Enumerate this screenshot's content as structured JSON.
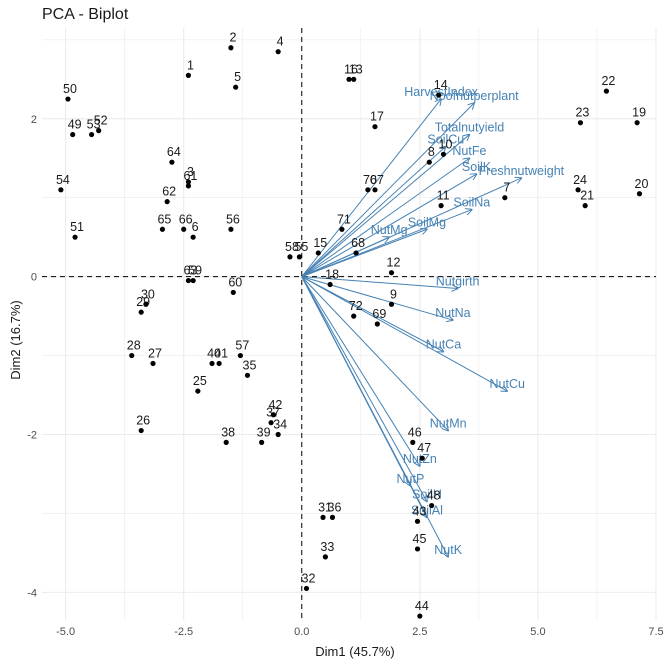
{
  "chart_data": {
    "type": "scatter",
    "title": "PCA - Biplot",
    "xlabel": "Dim1 (45.7%)",
    "ylabel": "Dim2 (16.7%)",
    "xlim": [
      -5.5,
      7.5
    ],
    "ylim": [
      -4.35,
      3.15
    ],
    "x_ticks": [
      -5.0,
      -2.5,
      0.0,
      2.5,
      5.0,
      7.5
    ],
    "x_tick_labels": [
      "-5.0",
      "-2.5",
      "0.0",
      "2.5",
      "5.0",
      "7.5"
    ],
    "y_ticks": [
      -4,
      -2,
      0,
      2
    ],
    "y_tick_labels": [
      "-4",
      "-2",
      "0",
      "2"
    ],
    "grid": true,
    "zero_lines": "dashed",
    "colors": {
      "points": "#000000",
      "point_labels": "#1a1a1a",
      "arrows": "#4682B4",
      "grid": "#ebebeb"
    },
    "individuals": [
      {
        "label": "1",
        "x": -2.4,
        "y": 2.55
      },
      {
        "label": "2",
        "x": -1.5,
        "y": 2.9
      },
      {
        "label": "3",
        "x": -2.4,
        "y": 1.2
      },
      {
        "label": "4",
        "x": -0.5,
        "y": 2.85
      },
      {
        "label": "5",
        "x": -1.4,
        "y": 2.4
      },
      {
        "label": "6",
        "x": -2.3,
        "y": 0.5
      },
      {
        "label": "7",
        "x": 4.3,
        "y": 1.0
      },
      {
        "label": "8",
        "x": 2.7,
        "y": 1.45
      },
      {
        "label": "9",
        "x": 1.9,
        "y": -0.35
      },
      {
        "label": "10",
        "x": 3.0,
        "y": 1.55
      },
      {
        "label": "11",
        "x": 2.95,
        "y": 0.9
      },
      {
        "label": "12",
        "x": 1.9,
        "y": 0.05
      },
      {
        "label": "13",
        "x": 1.1,
        "y": 2.5
      },
      {
        "label": "14",
        "x": 2.9,
        "y": 2.3
      },
      {
        "label": "15",
        "x": 0.35,
        "y": 0.3
      },
      {
        "label": "16",
        "x": 1.0,
        "y": 2.5
      },
      {
        "label": "17",
        "x": 1.55,
        "y": 1.9
      },
      {
        "label": "18",
        "x": 0.6,
        "y": -0.1
      },
      {
        "label": "19",
        "x": 7.1,
        "y": 1.95
      },
      {
        "label": "20",
        "x": 7.15,
        "y": 1.05
      },
      {
        "label": "21",
        "x": 6.0,
        "y": 0.9
      },
      {
        "label": "22",
        "x": 6.45,
        "y": 2.35
      },
      {
        "label": "23",
        "x": 5.9,
        "y": 1.95
      },
      {
        "label": "24",
        "x": 5.85,
        "y": 1.1
      },
      {
        "label": "25",
        "x": -2.2,
        "y": -1.45
      },
      {
        "label": "26",
        "x": -3.4,
        "y": -1.95
      },
      {
        "label": "27",
        "x": -3.15,
        "y": -1.1
      },
      {
        "label": "28",
        "x": -3.6,
        "y": -1.0
      },
      {
        "label": "29",
        "x": -3.4,
        "y": -0.45
      },
      {
        "label": "30",
        "x": -3.3,
        "y": -0.35
      },
      {
        "label": "31",
        "x": 0.45,
        "y": -3.05
      },
      {
        "label": "32",
        "x": 0.1,
        "y": -3.95
      },
      {
        "label": "33",
        "x": 0.5,
        "y": -3.55
      },
      {
        "label": "34",
        "x": -0.5,
        "y": -2.0
      },
      {
        "label": "35",
        "x": -1.15,
        "y": -1.25
      },
      {
        "label": "36",
        "x": 0.65,
        "y": -3.05
      },
      {
        "label": "37",
        "x": -0.65,
        "y": -1.85
      },
      {
        "label": "38",
        "x": -1.6,
        "y": -2.1
      },
      {
        "label": "39",
        "x": -0.85,
        "y": -2.1
      },
      {
        "label": "40",
        "x": -1.9,
        "y": -1.1
      },
      {
        "label": "41",
        "x": -1.75,
        "y": -1.1
      },
      {
        "label": "42",
        "x": -0.6,
        "y": -1.75
      },
      {
        "label": "43",
        "x": 2.45,
        "y": -3.1
      },
      {
        "label": "44",
        "x": 2.5,
        "y": -4.3
      },
      {
        "label": "45",
        "x": 2.45,
        "y": -3.45
      },
      {
        "label": "46",
        "x": 2.35,
        "y": -2.1
      },
      {
        "label": "47",
        "x": 2.55,
        "y": -2.3
      },
      {
        "label": "48",
        "x": 2.75,
        "y": -2.9
      },
      {
        "label": "49",
        "x": -4.85,
        "y": 1.8
      },
      {
        "label": "50",
        "x": -4.95,
        "y": 2.25
      },
      {
        "label": "51",
        "x": -4.8,
        "y": 0.5
      },
      {
        "label": "52",
        "x": -4.3,
        "y": 1.85
      },
      {
        "label": "53",
        "x": -4.45,
        "y": 1.8
      },
      {
        "label": "54",
        "x": -5.1,
        "y": 1.1
      },
      {
        "label": "55",
        "x": -0.05,
        "y": 0.25
      },
      {
        "label": "56",
        "x": -1.5,
        "y": 0.6
      },
      {
        "label": "57",
        "x": -1.3,
        "y": -1.0
      },
      {
        "label": "58",
        "x": -0.25,
        "y": 0.25
      },
      {
        "label": "59",
        "x": -2.3,
        "y": -0.05
      },
      {
        "label": "60",
        "x": -1.45,
        "y": -0.2
      },
      {
        "label": "61",
        "x": -2.4,
        "y": 1.15
      },
      {
        "label": "62",
        "x": -2.85,
        "y": 0.95
      },
      {
        "label": "63",
        "x": -2.4,
        "y": -0.05
      },
      {
        "label": "64",
        "x": -2.75,
        "y": 1.45
      },
      {
        "label": "65",
        "x": -2.95,
        "y": 0.6
      },
      {
        "label": "66",
        "x": -2.5,
        "y": 0.6
      },
      {
        "label": "67",
        "x": 1.55,
        "y": 1.1
      },
      {
        "label": "68",
        "x": 1.15,
        "y": 0.3
      },
      {
        "label": "69",
        "x": 1.6,
        "y": -0.6
      },
      {
        "label": "70",
        "x": 1.4,
        "y": 1.1
      },
      {
        "label": "71",
        "x": 0.85,
        "y": 0.6
      },
      {
        "label": "72",
        "x": 1.1,
        "y": -0.5
      }
    ],
    "variables": [
      {
        "name": "HarvestIndex",
        "x": 2.95,
        "y": 2.25
      },
      {
        "name": "Noofnutperplant",
        "x": 3.65,
        "y": 2.2
      },
      {
        "name": "Totalnutyield",
        "x": 3.55,
        "y": 1.8
      },
      {
        "name": "SoilCu",
        "x": 3.05,
        "y": 1.65
      },
      {
        "name": "NutFe",
        "x": 3.55,
        "y": 1.5
      },
      {
        "name": "SoilK",
        "x": 3.7,
        "y": 1.3
      },
      {
        "name": "Freshnutweight",
        "x": 4.65,
        "y": 1.25
      },
      {
        "name": "SoilMg",
        "x": 2.65,
        "y": 0.6
      },
      {
        "name": "SoilNa",
        "x": 3.6,
        "y": 0.85
      },
      {
        "name": "NutMg",
        "x": 1.85,
        "y": 0.5
      },
      {
        "name": "Nutgirth",
        "x": 3.3,
        "y": -0.15
      },
      {
        "name": "NutNa",
        "x": 3.2,
        "y": -0.55
      },
      {
        "name": "NutCa",
        "x": 3.0,
        "y": -0.95
      },
      {
        "name": "NutCu",
        "x": 4.35,
        "y": -1.45
      },
      {
        "name": "NutMn",
        "x": 3.1,
        "y": -1.95
      },
      {
        "name": "NutZn",
        "x": 2.5,
        "y": -2.4
      },
      {
        "name": "NutP",
        "x": 2.3,
        "y": -2.65
      },
      {
        "name": "SoilH",
        "x": 2.65,
        "y": -2.85
      },
      {
        "name": "SoilAl",
        "x": 2.65,
        "y": -3.05
      },
      {
        "name": "NutK",
        "x": 3.1,
        "y": -3.55
      }
    ]
  }
}
